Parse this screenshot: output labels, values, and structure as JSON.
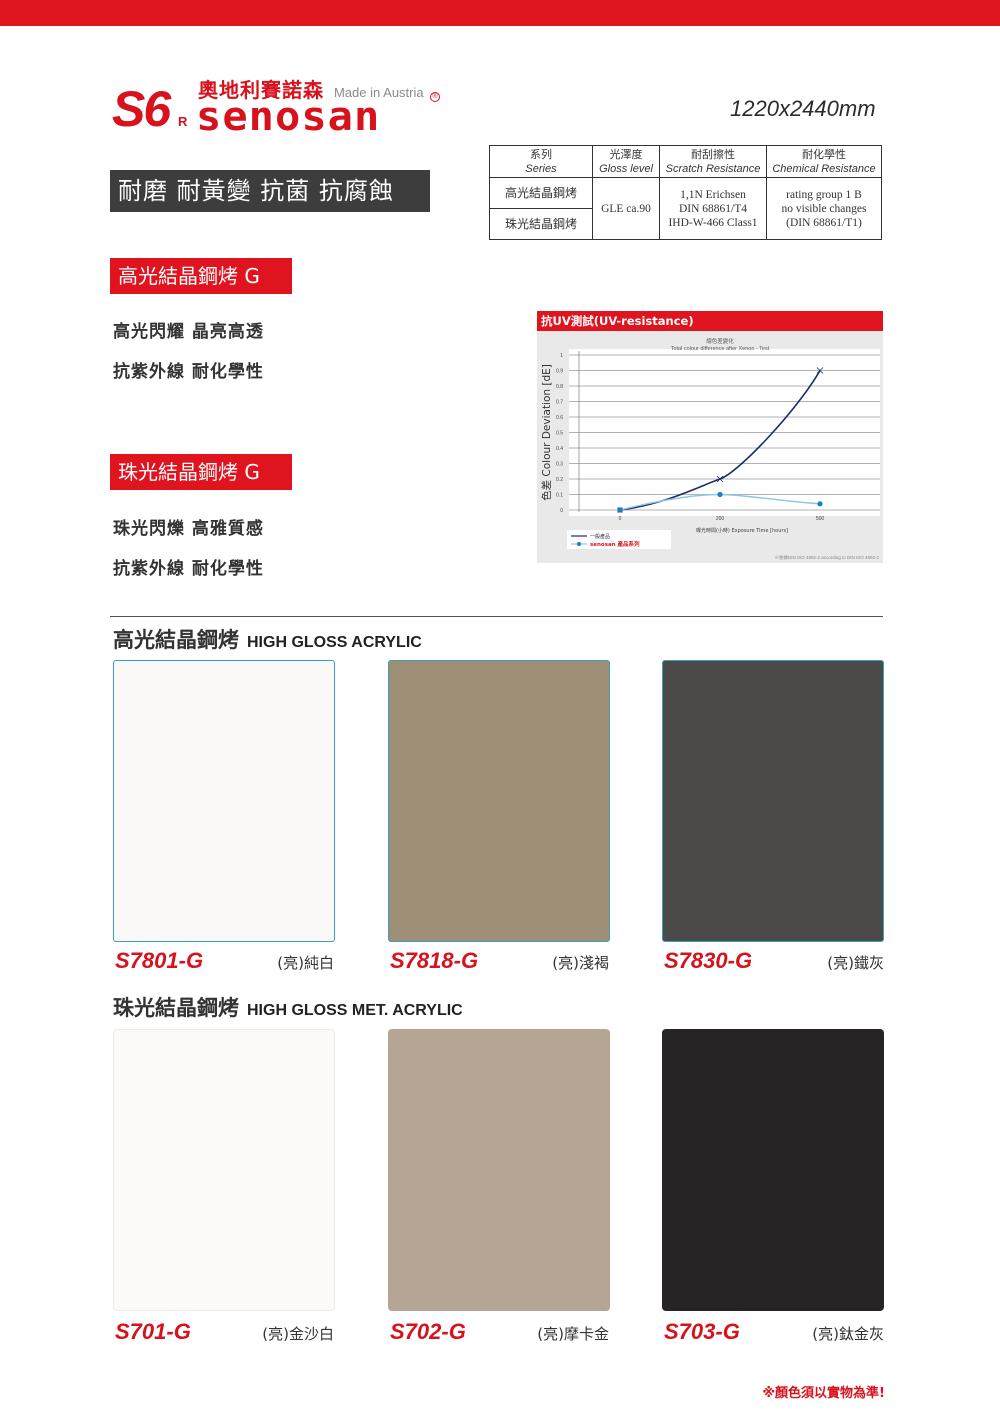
{
  "brand": {
    "mark": "S6",
    "mark_r": "R",
    "cn_name": "奧地利賽諾森",
    "made_in": "Made in Austria",
    "registered": "®",
    "wordmark": "senosan",
    "color": "#d8121c"
  },
  "size_label": "1220x2440mm",
  "feature_banner": "耐磨 耐黃變 抗菌 抗腐蝕",
  "spec_table": {
    "headers": [
      {
        "cn": "系列",
        "en": "Series"
      },
      {
        "cn": "光澤度",
        "en": "Gloss level"
      },
      {
        "cn": "耐刮擦性",
        "en": "Scratch Resistance"
      },
      {
        "cn": "耐化學性",
        "en": "Chemical Resistance"
      }
    ],
    "series": [
      "高光結晶鋼烤",
      "珠光結晶鋼烤"
    ],
    "gloss": "GLE ca.90",
    "scratch": [
      "1,1N Erichsen",
      "DIN 68861/T4",
      "IHD-W-466 Class1"
    ],
    "chemical": [
      "rating group 1 B",
      "no visible changes",
      "(DIN 68861/T1)"
    ]
  },
  "series_blocks": [
    {
      "tag": "高光結晶鋼烤 G",
      "lines": [
        "高光閃耀 晶亮高透",
        "抗紫外線 耐化學性"
      ]
    },
    {
      "tag": "珠光結晶鋼烤 G",
      "lines": [
        "珠光閃爍 高雅質感",
        "抗紫外線 耐化學性"
      ]
    }
  ],
  "chart_data": {
    "type": "line",
    "heading": "抗UV測試(UV-resistance)",
    "title_cn": "總色差變化",
    "title": "Total colour difference after Xenon - Test",
    "ylabel": "色差 Colour Deviation [dE]",
    "xlabel": "曝光時間(小時) Exposure Time [hours]",
    "footnote": "※依據DIN ISO 4892-2 according to DIN ISO 4892-2",
    "ylim": [
      0,
      1
    ],
    "yticks": [
      "0",
      "0.1",
      "0.2",
      "0.3",
      "0.4",
      "0.5",
      "0.6",
      "0.7",
      "0.8",
      "0.9",
      "1"
    ],
    "xticks": [
      "0",
      "200",
      "500"
    ],
    "grid": true,
    "legend_position": "bottom-left",
    "series": [
      {
        "name": "一般產品",
        "color": "#1c2a6e",
        "x": [
          0,
          200,
          500
        ],
        "values": [
          0.0,
          0.2,
          0.9
        ]
      },
      {
        "name": "senosan 產品系列",
        "color": "#1a7fc0",
        "x": [
          0,
          200,
          500
        ],
        "values": [
          0.0,
          0.1,
          0.04
        ]
      }
    ]
  },
  "sections": [
    {
      "title_cn": "高光結晶鋼烤",
      "title_en": "HIGH GLOSS ACRYLIC",
      "swatches": [
        {
          "code": "S7801-G",
          "name": "(亮)純白",
          "color": "#fbf9f7"
        },
        {
          "code": "S7818-G",
          "name": "(亮)淺褐",
          "color": "#a08f77"
        },
        {
          "code": "S7830-G",
          "name": "(亮)鐵灰",
          "color": "#4c4a48"
        }
      ]
    },
    {
      "title_cn": "珠光結晶鋼烤",
      "title_en": "HIGH GLOSS MET. ACRYLIC",
      "swatches": [
        {
          "code": "S701-G",
          "name": "(亮)金沙白",
          "color": "#fcfaf8"
        },
        {
          "code": "S702-G",
          "name": "(亮)摩卡金",
          "color": "#b4a594"
        },
        {
          "code": "S703-G",
          "name": "(亮)鈦金灰",
          "color": "#262425"
        }
      ]
    }
  ],
  "note": "※顏色須以實物為準!"
}
